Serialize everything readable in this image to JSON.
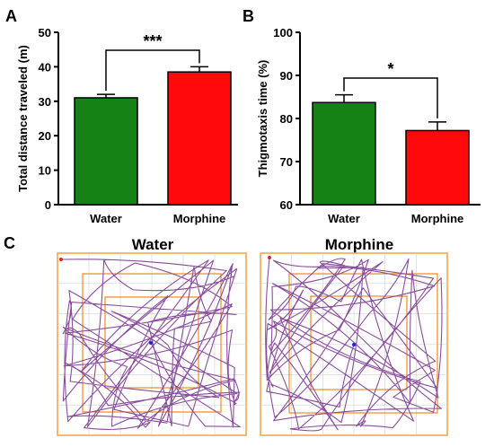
{
  "colors": {
    "water": "#158215",
    "morphine": "#ff0a0a",
    "axis": "#000000",
    "arena_border": "#f5a046",
    "zone": "#f08a1e",
    "track": "#8a4d9e",
    "grid": "#d0d0d0",
    "start_dot": "#e82020",
    "end_dot": "#1428d8"
  },
  "chart_data": [
    {
      "type": "bar",
      "panel": "A",
      "categories": [
        "Water",
        "Morphine"
      ],
      "values": [
        31.0,
        38.5
      ],
      "errors": [
        1.0,
        1.5
      ],
      "ylabel": "Total distance traveled (m)",
      "ylim": [
        0,
        50
      ],
      "yticks": [
        0,
        10,
        20,
        30,
        40,
        50
      ],
      "significance": "***",
      "grid": false
    },
    {
      "type": "bar",
      "panel": "B",
      "categories": [
        "Water",
        "Morphine"
      ],
      "values": [
        83.7,
        77.2
      ],
      "errors": [
        1.8,
        2.0
      ],
      "ylabel": "Thigmotaxis time (%)",
      "ylim": [
        60,
        100
      ],
      "yticks": [
        60,
        70,
        80,
        90,
        100
      ],
      "significance": "*",
      "grid": false
    }
  ],
  "panel_c": {
    "letter": "C",
    "arenas": [
      {
        "title": "Water"
      },
      {
        "title": "Morphine"
      }
    ]
  }
}
